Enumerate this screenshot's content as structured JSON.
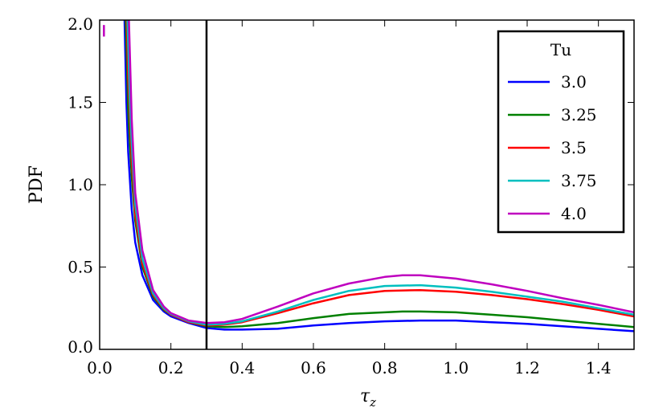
{
  "chart_data": {
    "type": "line",
    "xlabel": "τ",
    "xlabel_sub": "z",
    "ylabel": "PDF",
    "xlim": [
      0.0,
      1.5
    ],
    "ylim": [
      0.0,
      2.0
    ],
    "xticks": [
      0.0,
      0.2,
      0.4,
      0.6,
      0.8,
      1.0,
      1.2,
      1.4
    ],
    "xtick_labels": [
      "0.0",
      "0.2",
      "0.4",
      "0.6",
      "0.8",
      "1.0",
      "1.2",
      "1.4"
    ],
    "yticks": [
      0.0,
      0.5,
      1.0,
      1.5,
      2.0
    ],
    "ytick_labels": [
      "0.0",
      "0.5",
      "1.0",
      "1.5",
      "2.0"
    ],
    "grid": false,
    "vline": 0.3,
    "legend": {
      "title": "Tu",
      "placement": "top-right"
    },
    "series": [
      {
        "name": "3.0",
        "color": "#0000ff",
        "x": [
          0.07,
          0.075,
          0.08,
          0.09,
          0.1,
          0.12,
          0.15,
          0.18,
          0.2,
          0.25,
          0.3,
          0.35,
          0.4,
          0.5,
          0.6,
          0.7,
          0.8,
          0.9,
          1.0,
          1.1,
          1.2,
          1.3,
          1.4,
          1.5
        ],
        "y": [
          2.0,
          1.5,
          1.2,
          0.85,
          0.65,
          0.45,
          0.3,
          0.23,
          0.2,
          0.16,
          0.13,
          0.12,
          0.12,
          0.125,
          0.145,
          0.16,
          0.17,
          0.175,
          0.175,
          0.165,
          0.155,
          0.14,
          0.125,
          0.11
        ]
      },
      {
        "name": "3.25",
        "color": "#008000",
        "x": [
          0.073,
          0.08,
          0.09,
          0.1,
          0.12,
          0.15,
          0.18,
          0.2,
          0.25,
          0.3,
          0.35,
          0.4,
          0.5,
          0.6,
          0.7,
          0.8,
          0.85,
          0.9,
          1.0,
          1.1,
          1.2,
          1.3,
          1.4,
          1.5
        ],
        "y": [
          2.0,
          1.45,
          1.05,
          0.78,
          0.5,
          0.32,
          0.24,
          0.21,
          0.165,
          0.14,
          0.135,
          0.14,
          0.16,
          0.19,
          0.215,
          0.225,
          0.23,
          0.23,
          0.225,
          0.21,
          0.195,
          0.175,
          0.155,
          0.135
        ]
      },
      {
        "name": "3.5",
        "color": "#ff0000",
        "x": [
          0.076,
          0.08,
          0.09,
          0.1,
          0.12,
          0.15,
          0.18,
          0.2,
          0.25,
          0.3,
          0.35,
          0.4,
          0.5,
          0.6,
          0.7,
          0.8,
          0.9,
          1.0,
          1.1,
          1.2,
          1.3,
          1.4,
          1.5
        ],
        "y": [
          2.0,
          1.65,
          1.15,
          0.82,
          0.52,
          0.33,
          0.245,
          0.21,
          0.165,
          0.145,
          0.15,
          0.165,
          0.22,
          0.28,
          0.33,
          0.355,
          0.36,
          0.35,
          0.33,
          0.305,
          0.275,
          0.24,
          0.2
        ]
      },
      {
        "name": "3.75",
        "color": "#00bfbf",
        "x": [
          0.078,
          0.085,
          0.09,
          0.1,
          0.12,
          0.15,
          0.18,
          0.2,
          0.25,
          0.3,
          0.35,
          0.4,
          0.5,
          0.6,
          0.7,
          0.8,
          0.9,
          1.0,
          1.1,
          1.2,
          1.3,
          1.4,
          1.5
        ],
        "y": [
          2.0,
          1.5,
          1.25,
          0.88,
          0.55,
          0.34,
          0.25,
          0.215,
          0.17,
          0.15,
          0.155,
          0.17,
          0.23,
          0.3,
          0.355,
          0.385,
          0.39,
          0.375,
          0.35,
          0.32,
          0.29,
          0.25,
          0.21
        ]
      },
      {
        "name": "4.0",
        "color": "#bf00bf",
        "x": [
          0.082,
          0.09,
          0.1,
          0.12,
          0.15,
          0.18,
          0.2,
          0.25,
          0.3,
          0.35,
          0.4,
          0.5,
          0.6,
          0.7,
          0.8,
          0.85,
          0.9,
          1.0,
          1.1,
          1.2,
          1.3,
          1.4,
          1.5
        ],
        "y": [
          2.0,
          1.4,
          0.95,
          0.6,
          0.36,
          0.26,
          0.22,
          0.175,
          0.16,
          0.165,
          0.185,
          0.26,
          0.34,
          0.4,
          0.44,
          0.45,
          0.45,
          0.43,
          0.395,
          0.355,
          0.31,
          0.27,
          0.225
        ]
      }
    ],
    "extra_segment": {
      "color": "#bf00bf",
      "x": [
        0.012,
        0.012
      ],
      "y": [
        1.9,
        1.97
      ]
    }
  }
}
